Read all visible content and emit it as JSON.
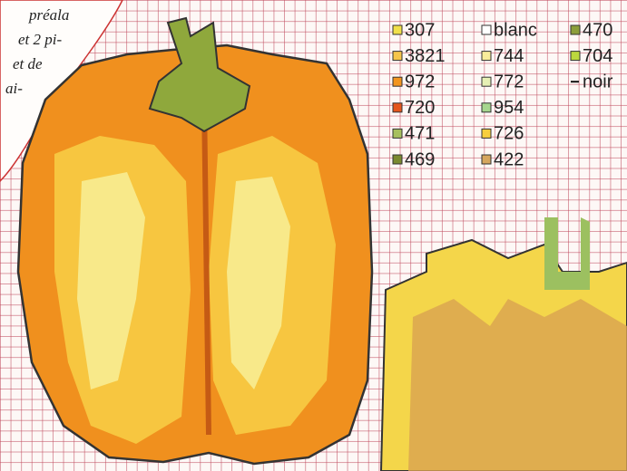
{
  "note": {
    "lines": [
      "préala",
      "et 2 pi-",
      "et de",
      "ai-"
    ]
  },
  "legend": {
    "columns": [
      [
        {
          "code": "307",
          "color": "#f0e04a"
        },
        {
          "code": "3821",
          "color": "#f6c54a"
        },
        {
          "code": "972",
          "color": "#f2951e"
        },
        {
          "code": "720",
          "color": "#e4561c"
        },
        {
          "code": "471",
          "color": "#a6c05e"
        },
        {
          "code": "469",
          "color": "#7a8a30"
        }
      ],
      [
        {
          "code": "blanc",
          "color": "#ffffff"
        },
        {
          "code": "744",
          "color": "#f8ec9a"
        },
        {
          "code": "772",
          "color": "#e6f0b4"
        },
        {
          "code": "954",
          "color": "#a6d68e"
        },
        {
          "code": "726",
          "color": "#f8cf3e"
        },
        {
          "code": "422",
          "color": "#d6a65e"
        }
      ],
      [
        {
          "code": "470",
          "color": "#8c9e3a"
        },
        {
          "code": "704",
          "color": "#bcd83e"
        },
        {
          "code": "noir",
          "color": "#111111",
          "style": "line"
        }
      ]
    ]
  }
}
